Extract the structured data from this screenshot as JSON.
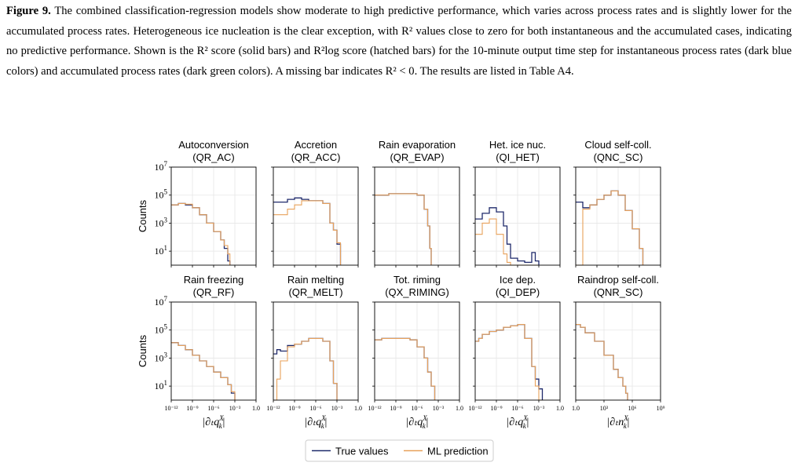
{
  "caption": {
    "lead": "Figure 9.",
    "lines": [
      "The combined classification-regression models show moderate to high predictive performance, which varies across process rates",
      "and is slightly lower for the accumulated process rates. Heterogeneous ice nucleation is the clear exception, with R² values close to zero",
      "for both instantaneous and the accumulated cases, indicating no predictive performance. Shown is the R² score (solid bars) and R²log score",
      "(hatched bars) for the 10-minute output time step for instantaneous process rates (dark blue colors) and accumulated process rates (dark",
      "green colors). A missing bar indicates R² < 0. The results are listed in Table A4."
    ]
  },
  "figure": {
    "ylabel": "Counts",
    "xlabel_q": "|∂ₜq",
    "xlabel_n": "|∂ₜn",
    "legend": [
      {
        "label": "True values",
        "color": "#1f2a6b"
      },
      {
        "label": "ML prediction",
        "color": "#e8a15a"
      }
    ]
  },
  "chart_data": [
    {
      "type": "line",
      "title": "Autoconversion",
      "subtitle": "(QR_AC)",
      "ylim": [
        1,
        10000000.0
      ],
      "xlim": [
        1e-12,
        1.0
      ],
      "x": [
        -12,
        -11,
        -10,
        -9,
        -8,
        -7,
        -6,
        -5,
        -4.5,
        -4,
        -3.7
      ],
      "series": [
        {
          "name": "True values",
          "values": [
            4.3,
            4.4,
            4.3,
            4.1,
            3.6,
            3.0,
            2.4,
            1.8,
            1.2,
            0.3,
            0
          ]
        },
        {
          "name": "ML prediction",
          "values": [
            4.3,
            4.4,
            4.35,
            4.1,
            3.6,
            3.0,
            2.4,
            1.8,
            1.4,
            0.8,
            0
          ]
        }
      ]
    },
    {
      "type": "line",
      "title": "Accretion",
      "subtitle": "(QR_ACC)",
      "ylim": [
        1,
        10000000.0
      ],
      "xlim": [
        1e-12,
        1.0
      ],
      "x": [
        -12,
        -10,
        -9,
        -8,
        -7,
        -6,
        -5,
        -4,
        -3.5,
        -3,
        -2.5
      ],
      "series": [
        {
          "name": "True values",
          "values": [
            4.5,
            4.7,
            4.8,
            4.7,
            4.6,
            4.6,
            4.4,
            3.0,
            2.5,
            1.5,
            0
          ]
        },
        {
          "name": "ML prediction",
          "values": [
            3.6,
            4.0,
            4.3,
            4.6,
            4.6,
            4.6,
            4.4,
            3.0,
            2.5,
            1.6,
            0
          ]
        }
      ]
    },
    {
      "type": "line",
      "title": "Rain evaporation",
      "subtitle": "(QR_EVAP)",
      "ylim": [
        1,
        10000000.0
      ],
      "xlim": [
        1e-12,
        1.0
      ],
      "x": [
        -12,
        -10,
        -9,
        -8,
        -7,
        -6,
        -5,
        -4.5,
        -4.2,
        -4
      ],
      "series": [
        {
          "name": "True values",
          "values": [
            5.0,
            5.1,
            5.1,
            5.1,
            5.1,
            5.0,
            4.0,
            2.8,
            1.2,
            0
          ]
        },
        {
          "name": "ML prediction",
          "values": [
            5.0,
            5.1,
            5.1,
            5.1,
            5.1,
            5.0,
            4.0,
            2.8,
            1.2,
            0
          ]
        }
      ]
    },
    {
      "type": "line",
      "title": "Het. ice nuc.",
      "subtitle": "(QI_HET)",
      "ylim": [
        1,
        10000000.0
      ],
      "xlim": [
        1e-12,
        1.0
      ],
      "x": [
        -12,
        -11,
        -10,
        -9,
        -8,
        -7.5,
        -7,
        -6,
        -5,
        -4,
        -3.5,
        -3
      ],
      "series": [
        {
          "name": "True values",
          "values": [
            3.3,
            3.7,
            4.1,
            3.8,
            2.8,
            1.5,
            0.5,
            0.3,
            0.2,
            0.9,
            0.3,
            0
          ]
        },
        {
          "name": "ML prediction",
          "values": [
            2.2,
            3.0,
            3.3,
            2.2,
            0.8,
            0.2,
            0,
            0,
            0,
            0,
            0,
            0
          ]
        }
      ]
    },
    {
      "type": "line",
      "title": "Cloud self-coll.",
      "subtitle": "(QNC_SC)",
      "ylim": [
        1,
        10000000.0
      ],
      "xlim": [
        1e-12,
        1.0
      ],
      "x": [
        -12,
        -11,
        -10,
        -9,
        -8,
        -7,
        -6,
        -5,
        -4,
        -3,
        -2.5
      ],
      "series": [
        {
          "name": "True values",
          "values": [
            4.5,
            4.1,
            4.3,
            4.7,
            5.0,
            5.3,
            5.0,
            3.9,
            2.6,
            1.2,
            0
          ]
        },
        {
          "name": "ML prediction",
          "values": [
            0,
            4.0,
            4.3,
            4.7,
            5.0,
            5.3,
            5.0,
            3.9,
            2.6,
            1.2,
            0
          ]
        }
      ]
    },
    {
      "type": "line",
      "title": "Rain freezing",
      "subtitle": "(QR_RF)",
      "ylim": [
        1,
        10000000.0
      ],
      "xlim": [
        1e-12,
        1.0
      ],
      "x": [
        -12,
        -11,
        -10,
        -9,
        -8,
        -7,
        -6,
        -5,
        -4,
        -3.5,
        -3
      ],
      "series": [
        {
          "name": "True values",
          "values": [
            4.1,
            3.9,
            3.6,
            3.2,
            2.8,
            2.4,
            2.0,
            1.6,
            1.1,
            0.5,
            0
          ]
        },
        {
          "name": "ML prediction",
          "values": [
            4.1,
            3.9,
            3.6,
            3.2,
            2.8,
            2.4,
            2.0,
            1.6,
            1.1,
            0.6,
            0
          ]
        }
      ]
    },
    {
      "type": "line",
      "title": "Rain melting",
      "subtitle": "(QR_MELT)",
      "ylim": [
        1,
        10000000.0
      ],
      "xlim": [
        1e-12,
        1.0
      ],
      "x": [
        -12,
        -11.5,
        -11,
        -10,
        -9,
        -8,
        -7,
        -6,
        -5,
        -4,
        -3.5,
        -3
      ],
      "series": [
        {
          "name": "True values",
          "values": [
            3.3,
            3.6,
            3.5,
            3.9,
            4.0,
            4.2,
            4.4,
            4.4,
            4.2,
            2.8,
            1.2,
            0
          ]
        },
        {
          "name": "ML prediction",
          "values": [
            0,
            1.5,
            2.8,
            3.8,
            4.0,
            4.2,
            4.4,
            4.4,
            4.2,
            2.8,
            1.2,
            0
          ]
        }
      ]
    },
    {
      "type": "line",
      "title": "Tot. riming",
      "subtitle": "(QX_RIMING)",
      "ylim": [
        1,
        10000000.0
      ],
      "xlim": [
        1e-12,
        1.0
      ],
      "x": [
        -12,
        -11,
        -10,
        -9,
        -8,
        -7,
        -6,
        -5,
        -4.5,
        -4,
        -3.5
      ],
      "series": [
        {
          "name": "True values",
          "values": [
            4.3,
            4.4,
            4.4,
            4.4,
            4.4,
            4.3,
            3.8,
            3.0,
            2.0,
            1.0,
            0
          ]
        },
        {
          "name": "ML prediction",
          "values": [
            4.3,
            4.4,
            4.4,
            4.4,
            4.4,
            4.3,
            3.8,
            3.0,
            2.0,
            1.0,
            0
          ]
        }
      ]
    },
    {
      "type": "line",
      "title": "Ice dep.",
      "subtitle": "(QI_DEP)",
      "ylim": [
        1,
        10000000.0
      ],
      "xlim": [
        1e-12,
        1.0
      ],
      "x": [
        -12,
        -11.5,
        -11,
        -10,
        -9,
        -8,
        -7,
        -6,
        -5,
        -4,
        -3.5,
        -3,
        -2.5
      ],
      "series": [
        {
          "name": "True values",
          "values": [
            4.2,
            4.4,
            4.7,
            4.9,
            5.0,
            5.2,
            5.3,
            5.4,
            4.4,
            2.4,
            1.5,
            0.8,
            0
          ]
        },
        {
          "name": "ML prediction",
          "values": [
            4.2,
            4.4,
            4.7,
            4.9,
            5.0,
            5.2,
            5.3,
            5.4,
            4.4,
            2.4,
            1.0,
            0,
            0
          ]
        }
      ]
    },
    {
      "type": "line",
      "title": "Raindrop self-coll.",
      "subtitle": "(QNR_SC)",
      "ylim": [
        1,
        10000000.0
      ],
      "xlim": [
        1,
        1000000000.0
      ],
      "x": [
        0,
        0.5,
        1,
        2,
        3,
        4,
        4.5,
        5,
        5.3,
        5.5
      ],
      "series": [
        {
          "name": "True values",
          "values": [
            5.4,
            5.2,
            4.8,
            4.2,
            3.2,
            2.2,
            1.6,
            1.0,
            0.5,
            0
          ]
        },
        {
          "name": "ML prediction",
          "values": [
            5.4,
            5.2,
            4.8,
            4.2,
            3.2,
            2.2,
            1.6,
            1.0,
            0.5,
            0
          ]
        }
      ]
    }
  ]
}
